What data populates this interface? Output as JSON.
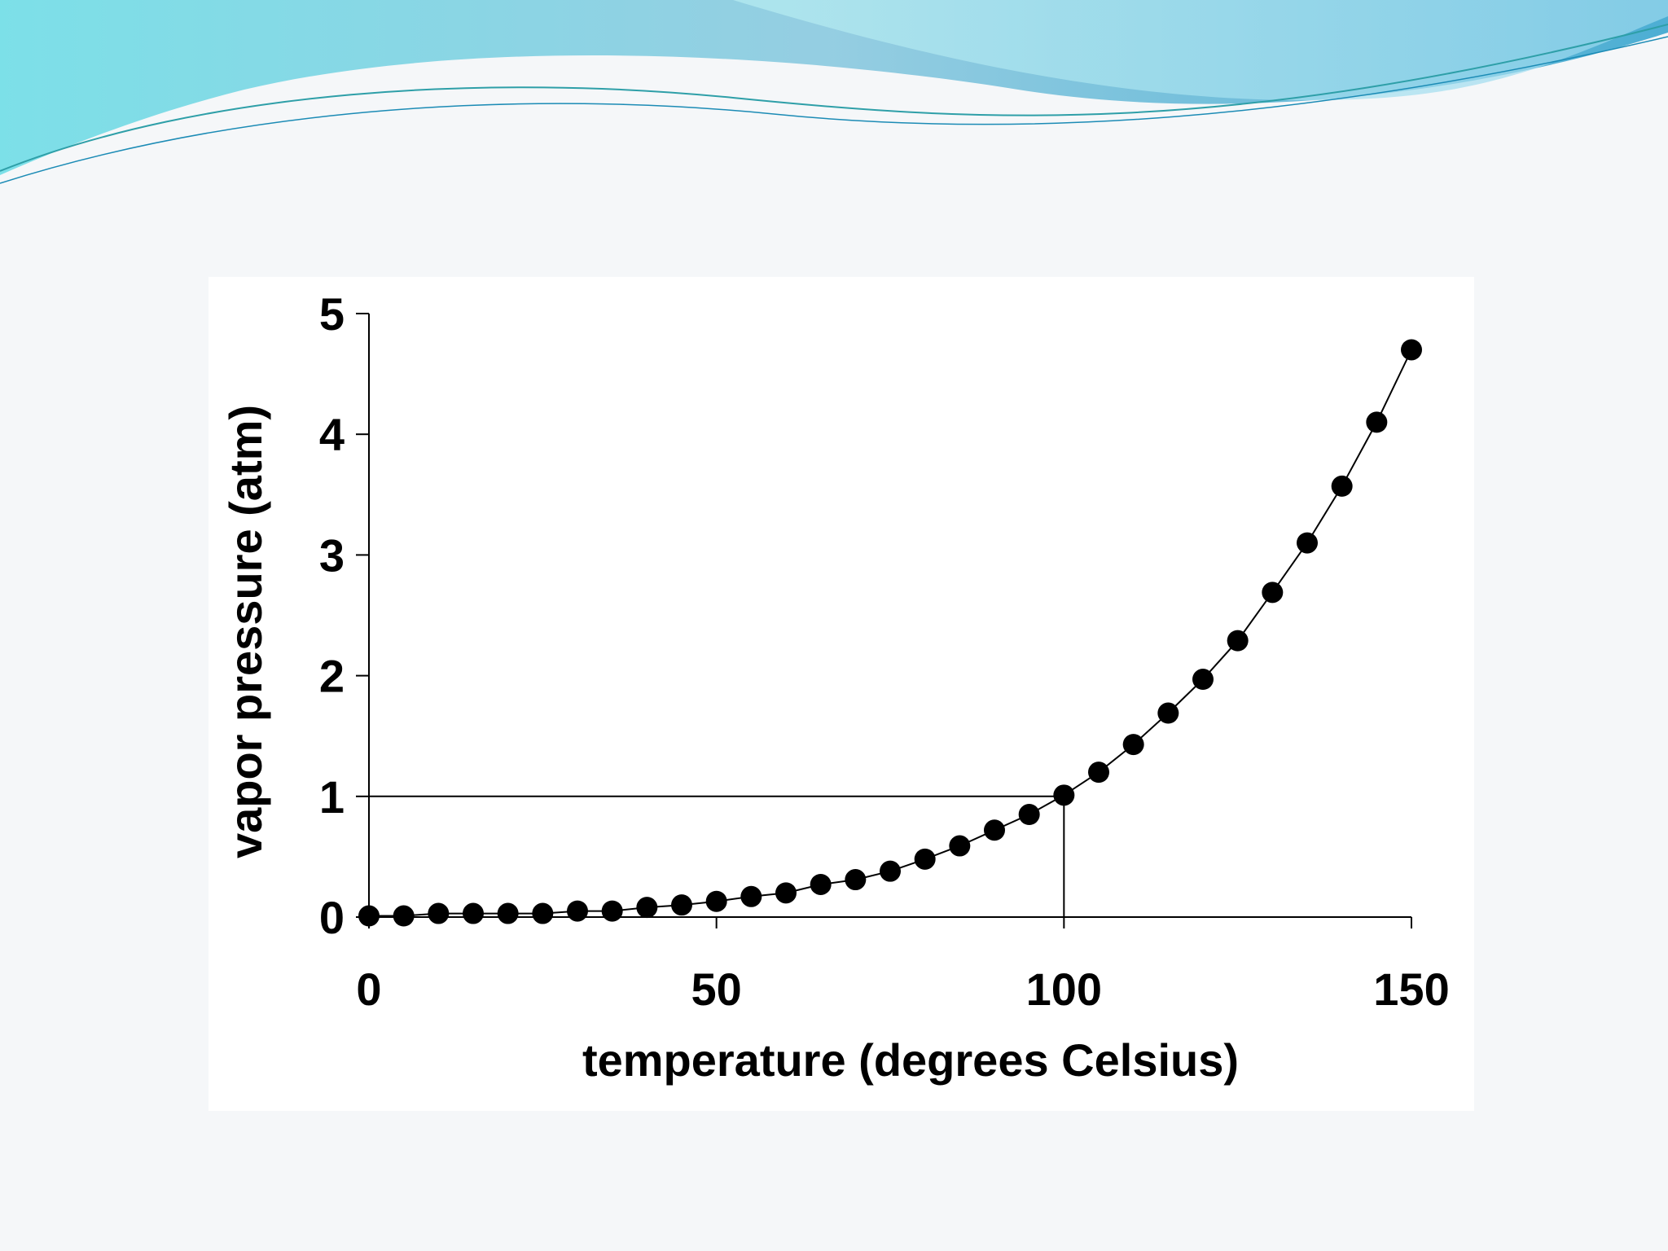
{
  "chart_data": {
    "type": "scatter",
    "title": "",
    "xlabel": "temperature (degrees Celsius)",
    "ylabel": "vapor pressure (atm)",
    "xlim": [
      0,
      150
    ],
    "ylim": [
      0,
      5
    ],
    "xticks": [
      "0",
      "50",
      "100",
      "150"
    ],
    "yticks": [
      "0",
      "1",
      "2",
      "3",
      "4",
      "5"
    ],
    "grid": false,
    "connected": true,
    "reference_lines": {
      "y": 1,
      "x": 100
    },
    "series": [
      {
        "x": [
          0,
          5,
          10,
          15,
          20,
          25,
          30,
          35,
          40,
          45,
          50,
          55,
          60,
          65,
          70,
          75,
          80,
          85,
          90,
          95,
          100,
          105,
          110,
          115,
          120,
          125,
          130,
          135,
          140,
          145,
          150
        ],
        "y": [
          0.01,
          0.01,
          0.03,
          0.03,
          0.03,
          0.03,
          0.05,
          0.05,
          0.08,
          0.1,
          0.13,
          0.17,
          0.2,
          0.27,
          0.31,
          0.38,
          0.48,
          0.59,
          0.72,
          0.85,
          1.01,
          1.2,
          1.43,
          1.69,
          1.97,
          2.29,
          2.69,
          3.1,
          3.57,
          4.1,
          4.7
        ]
      }
    ]
  },
  "colors": {
    "marker": "#000000",
    "line": "#000000",
    "background": "#ffffff",
    "banner_light": "#7fdfe8",
    "banner_dark": "#2a8fbf"
  }
}
